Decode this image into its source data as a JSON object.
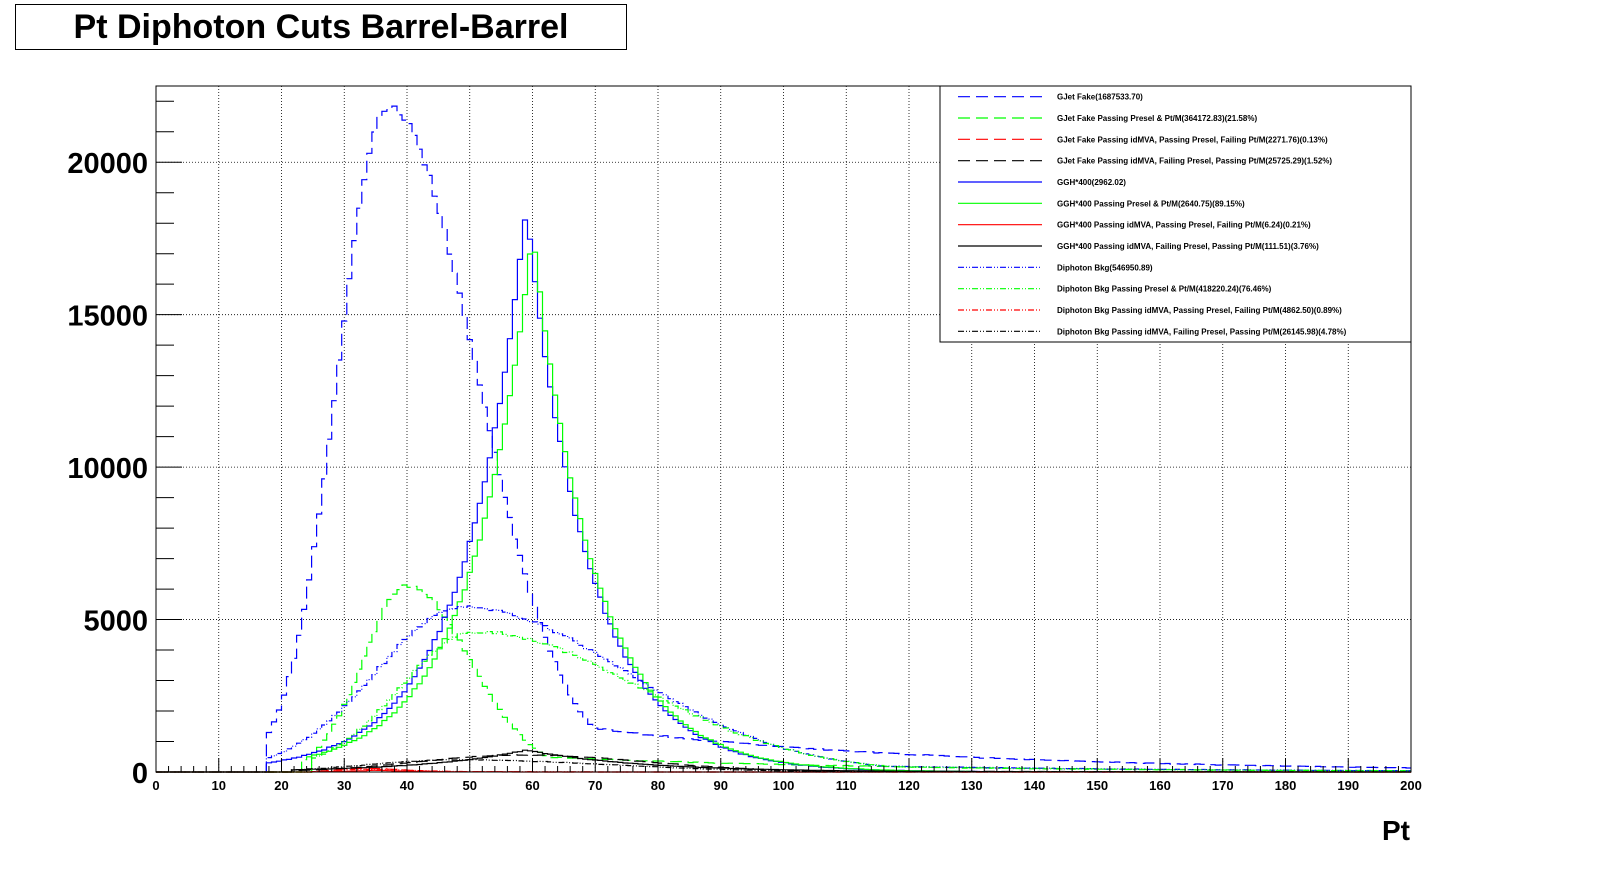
{
  "chart_data": {
    "type": "line",
    "title": "Pt Diphoton Cuts Barrel-Barrel",
    "xlabel": "Pt",
    "ylabel": "",
    "xlim": [
      0,
      200
    ],
    "ylim": [
      0,
      22500
    ],
    "x_ticks": [
      0,
      10,
      20,
      30,
      40,
      50,
      60,
      70,
      80,
      90,
      100,
      110,
      120,
      130,
      140,
      150,
      160,
      170,
      180,
      190,
      200
    ],
    "y_ticks": [
      0,
      5000,
      10000,
      15000,
      20000
    ],
    "grid": true,
    "legend_position": "top-right",
    "series": [
      {
        "name": "GJet Fake(1687533.70)",
        "color": "#0000ff",
        "style": "dash",
        "shape": "fake",
        "peak": 21800,
        "mu": 37,
        "sl": 8,
        "sr": 14,
        "start": 17.5,
        "max_x": 200
      },
      {
        "name": "GJet Fake Passing Presel & Pt/M(364172.83)(21.58%)",
        "color": "#00ff00",
        "style": "dash",
        "shape": "fake",
        "peak": 6100,
        "mu": 40,
        "sl": 7,
        "sr": 10,
        "start": 23,
        "max_x": 200
      },
      {
        "name": "GJet Fake Passing idMVA, Passing Presel, Failing Pt/M(2271.76)(0.13%)",
        "color": "#ff0000",
        "style": "dash",
        "shape": "fake",
        "peak": 120,
        "mu": 33,
        "sl": 4,
        "sr": 6,
        "start": 25,
        "max_x": 60
      },
      {
        "name": "GJet Fake Passing idMVA, Failing Presel, Passing Pt/M(25725.29)(1.52%)",
        "color": "#000000",
        "style": "dash",
        "shape": "fake",
        "peak": 560,
        "mu": 58,
        "sl": 16,
        "sr": 20,
        "start": 22,
        "max_x": 200
      },
      {
        "name": "GGH*400(2962.02)",
        "color": "#0000ff",
        "style": "solid",
        "shape": "signal",
        "peak": 18500,
        "mu": 59,
        "sl": 10,
        "sr": 10,
        "start": 18,
        "max_x": 200
      },
      {
        "name": "GGH*400 Passing Presel & Pt/M(2640.75)(89.15%)",
        "color": "#00ff00",
        "style": "solid",
        "shape": "signal",
        "peak": 17700,
        "mu": 60,
        "sl": 10,
        "sr": 10,
        "start": 25,
        "max_x": 200
      },
      {
        "name": "GGH*400 Passing idMVA, Passing Presel, Failing Pt/M(6.24)(0.21%)",
        "color": "#ff0000",
        "style": "solid",
        "shape": "signal",
        "peak": 60,
        "mu": 35,
        "sl": 5,
        "sr": 6,
        "start": 25,
        "max_x": 60
      },
      {
        "name": "GGH*400 Passing idMVA, Failing Presel, Passing Pt/M(111.51)(3.76%)",
        "color": "#000000",
        "style": "solid",
        "shape": "signal",
        "peak": 720,
        "mu": 59,
        "sl": 16,
        "sr": 18,
        "start": 22,
        "max_x": 200
      },
      {
        "name": "Diphoton Bkg(546950.89)",
        "color": "#0000ff",
        "style": "dashdot",
        "shape": "bkg",
        "peak": 5400,
        "mu": 49,
        "sl": 14,
        "sr": 26,
        "start": 18,
        "max_x": 200
      },
      {
        "name": "Diphoton Bkg Passing Presel & Pt/M(418220.24)(76.46%)",
        "color": "#00ff00",
        "style": "dashdot",
        "shape": "bkg",
        "peak": 4600,
        "mu": 51,
        "sl": 12,
        "sr": 26,
        "start": 25,
        "max_x": 200
      },
      {
        "name": "Diphoton Bkg Passing idMVA, Passing Presel, Failing Pt/M(4862.50)(0.89%)",
        "color": "#ff0000",
        "style": "dashdot",
        "shape": "bkg",
        "peak": 90,
        "mu": 33,
        "sl": 4,
        "sr": 8,
        "start": 25,
        "max_x": 70
      },
      {
        "name": "Diphoton Bkg Passing idMVA, Failing Presel, Passing Pt/M(26145.98)(4.78%)",
        "color": "#000000",
        "style": "dashdot",
        "shape": "bkg",
        "peak": 400,
        "mu": 48,
        "sl": 14,
        "sr": 24,
        "start": 22,
        "max_x": 200
      }
    ]
  }
}
